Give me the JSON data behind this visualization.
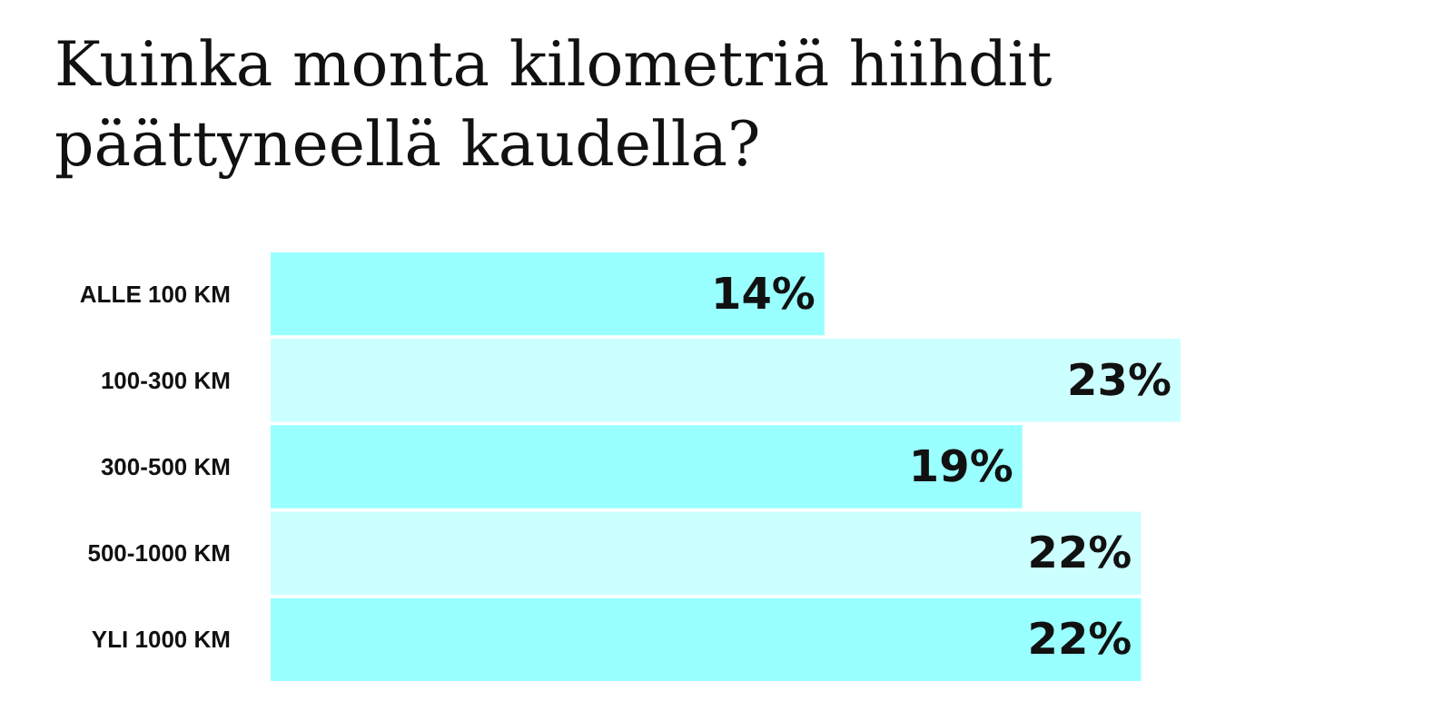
{
  "chart_data": {
    "type": "bar",
    "orientation": "horizontal",
    "title": "Kuinka monta kilometriä hiihdit päättyneellä kaudella?",
    "categories": [
      "ALLE 100 KM",
      "100-300 KM",
      "300-500 KM",
      "500-1000 KM",
      "YLI 1000 KM"
    ],
    "values": [
      14,
      23,
      19,
      22,
      22
    ],
    "colors": [
      "#99ffff",
      "#ccffff",
      "#99ffff",
      "#ccffff",
      "#99ffff"
    ],
    "value_labels": [
      "14%",
      "23%",
      "19%",
      "22%",
      "22%"
    ]
  }
}
